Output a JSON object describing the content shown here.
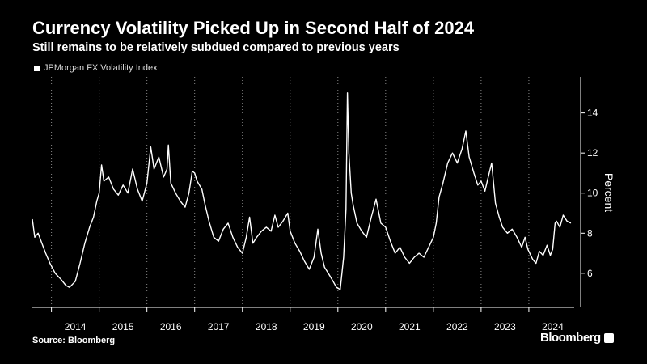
{
  "header": {
    "title": "Currency Volatility Picked Up in Second Half of 2024",
    "subtitle": "Still remains to be relatively subdued compared to previous years"
  },
  "legend": {
    "label": "JPMorgan FX Volatility Index"
  },
  "footer": {
    "source": "Source: Bloomberg",
    "brand": "Bloomberg"
  },
  "colors": {
    "background": "#000000",
    "line": "#ffffff",
    "grid": "#8a8a8a"
  },
  "chart_data": {
    "type": "line",
    "title": "Currency Volatility Picked Up in Second Half of 2024",
    "subtitle": "Still remains to be relatively subdued compared to previous years",
    "ylabel": "Percent",
    "xlabel": "",
    "ylim": [
      4.3,
      15.8
    ],
    "yticks": [
      6,
      8,
      10,
      12,
      14
    ],
    "xlim": [
      2013.6,
      2024.95
    ],
    "x_tick_labels": [
      "2014",
      "2015",
      "2016",
      "2017",
      "2018",
      "2019",
      "2020",
      "2021",
      "2022",
      "2023",
      "2024"
    ],
    "x_tick_positions": [
      2014.0,
      2015.0,
      2016.0,
      2017.0,
      2018.0,
      2019.0,
      2020.0,
      2021.0,
      2022.0,
      2023.0,
      2024.0
    ],
    "grid": "vertical dotted at year boundaries",
    "legend_position": "top-left",
    "series": [
      {
        "name": "JPMorgan FX Volatility Index",
        "points": [
          [
            2013.6,
            8.7
          ],
          [
            2013.65,
            7.8
          ],
          [
            2013.72,
            8.0
          ],
          [
            2013.8,
            7.5
          ],
          [
            2013.88,
            7.0
          ],
          [
            2013.97,
            6.5
          ],
          [
            2014.08,
            6.0
          ],
          [
            2014.2,
            5.7
          ],
          [
            2014.3,
            5.4
          ],
          [
            2014.38,
            5.3
          ],
          [
            2014.5,
            5.6
          ],
          [
            2014.6,
            6.5
          ],
          [
            2014.7,
            7.5
          ],
          [
            2014.8,
            8.3
          ],
          [
            2014.88,
            8.8
          ],
          [
            2014.95,
            9.6
          ],
          [
            2015.0,
            10.0
          ],
          [
            2015.05,
            11.4
          ],
          [
            2015.1,
            10.6
          ],
          [
            2015.2,
            10.8
          ],
          [
            2015.3,
            10.2
          ],
          [
            2015.4,
            9.9
          ],
          [
            2015.5,
            10.4
          ],
          [
            2015.6,
            10.0
          ],
          [
            2015.7,
            11.2
          ],
          [
            2015.8,
            10.2
          ],
          [
            2015.9,
            9.6
          ],
          [
            2016.0,
            10.5
          ],
          [
            2016.08,
            12.3
          ],
          [
            2016.15,
            11.2
          ],
          [
            2016.25,
            11.8
          ],
          [
            2016.35,
            10.8
          ],
          [
            2016.42,
            11.2
          ],
          [
            2016.45,
            12.4
          ],
          [
            2016.5,
            10.5
          ],
          [
            2016.6,
            10.0
          ],
          [
            2016.7,
            9.6
          ],
          [
            2016.8,
            9.3
          ],
          [
            2016.88,
            10.0
          ],
          [
            2016.95,
            11.1
          ],
          [
            2017.0,
            11.0
          ],
          [
            2017.05,
            10.6
          ],
          [
            2017.15,
            10.2
          ],
          [
            2017.22,
            9.4
          ],
          [
            2017.3,
            8.6
          ],
          [
            2017.4,
            7.8
          ],
          [
            2017.5,
            7.6
          ],
          [
            2017.6,
            8.2
          ],
          [
            2017.7,
            8.5
          ],
          [
            2017.8,
            7.8
          ],
          [
            2017.9,
            7.3
          ],
          [
            2018.0,
            7.0
          ],
          [
            2018.08,
            7.8
          ],
          [
            2018.15,
            8.8
          ],
          [
            2018.22,
            7.5
          ],
          [
            2018.3,
            7.8
          ],
          [
            2018.4,
            8.1
          ],
          [
            2018.5,
            8.3
          ],
          [
            2018.6,
            8.1
          ],
          [
            2018.68,
            8.9
          ],
          [
            2018.75,
            8.3
          ],
          [
            2018.85,
            8.6
          ],
          [
            2018.95,
            9.0
          ],
          [
            2019.0,
            8.1
          ],
          [
            2019.1,
            7.5
          ],
          [
            2019.2,
            7.1
          ],
          [
            2019.3,
            6.6
          ],
          [
            2019.4,
            6.2
          ],
          [
            2019.5,
            6.8
          ],
          [
            2019.58,
            8.2
          ],
          [
            2019.65,
            7.0
          ],
          [
            2019.72,
            6.3
          ],
          [
            2019.8,
            6.0
          ],
          [
            2019.9,
            5.6
          ],
          [
            2019.97,
            5.3
          ],
          [
            2020.05,
            5.2
          ],
          [
            2020.12,
            6.8
          ],
          [
            2020.17,
            9.2
          ],
          [
            2020.2,
            15.0
          ],
          [
            2020.23,
            12.0
          ],
          [
            2020.28,
            10.0
          ],
          [
            2020.32,
            9.4
          ],
          [
            2020.4,
            8.5
          ],
          [
            2020.5,
            8.1
          ],
          [
            2020.6,
            7.8
          ],
          [
            2020.7,
            8.8
          ],
          [
            2020.8,
            9.7
          ],
          [
            2020.9,
            8.5
          ],
          [
            2021.0,
            8.3
          ],
          [
            2021.1,
            7.6
          ],
          [
            2021.2,
            7.0
          ],
          [
            2021.3,
            7.3
          ],
          [
            2021.4,
            6.8
          ],
          [
            2021.5,
            6.5
          ],
          [
            2021.6,
            6.8
          ],
          [
            2021.7,
            7.0
          ],
          [
            2021.8,
            6.8
          ],
          [
            2021.9,
            7.3
          ],
          [
            2022.0,
            7.8
          ],
          [
            2022.06,
            8.5
          ],
          [
            2022.12,
            9.8
          ],
          [
            2022.2,
            10.5
          ],
          [
            2022.3,
            11.5
          ],
          [
            2022.4,
            12.0
          ],
          [
            2022.5,
            11.5
          ],
          [
            2022.6,
            12.2
          ],
          [
            2022.68,
            13.1
          ],
          [
            2022.75,
            11.8
          ],
          [
            2022.85,
            11.0
          ],
          [
            2022.93,
            10.4
          ],
          [
            2023.0,
            10.6
          ],
          [
            2023.08,
            10.1
          ],
          [
            2023.15,
            10.8
          ],
          [
            2023.22,
            11.5
          ],
          [
            2023.3,
            9.5
          ],
          [
            2023.38,
            8.8
          ],
          [
            2023.45,
            8.3
          ],
          [
            2023.55,
            8.0
          ],
          [
            2023.65,
            8.2
          ],
          [
            2023.75,
            7.8
          ],
          [
            2023.85,
            7.3
          ],
          [
            2023.92,
            7.8
          ],
          [
            2023.98,
            7.2
          ],
          [
            2024.08,
            6.7
          ],
          [
            2024.15,
            6.5
          ],
          [
            2024.22,
            7.1
          ],
          [
            2024.3,
            6.9
          ],
          [
            2024.38,
            7.4
          ],
          [
            2024.45,
            6.9
          ],
          [
            2024.5,
            7.2
          ],
          [
            2024.55,
            8.5
          ],
          [
            2024.58,
            8.6
          ],
          [
            2024.65,
            8.3
          ],
          [
            2024.72,
            8.9
          ],
          [
            2024.8,
            8.6
          ],
          [
            2024.88,
            8.5
          ]
        ]
      }
    ]
  }
}
